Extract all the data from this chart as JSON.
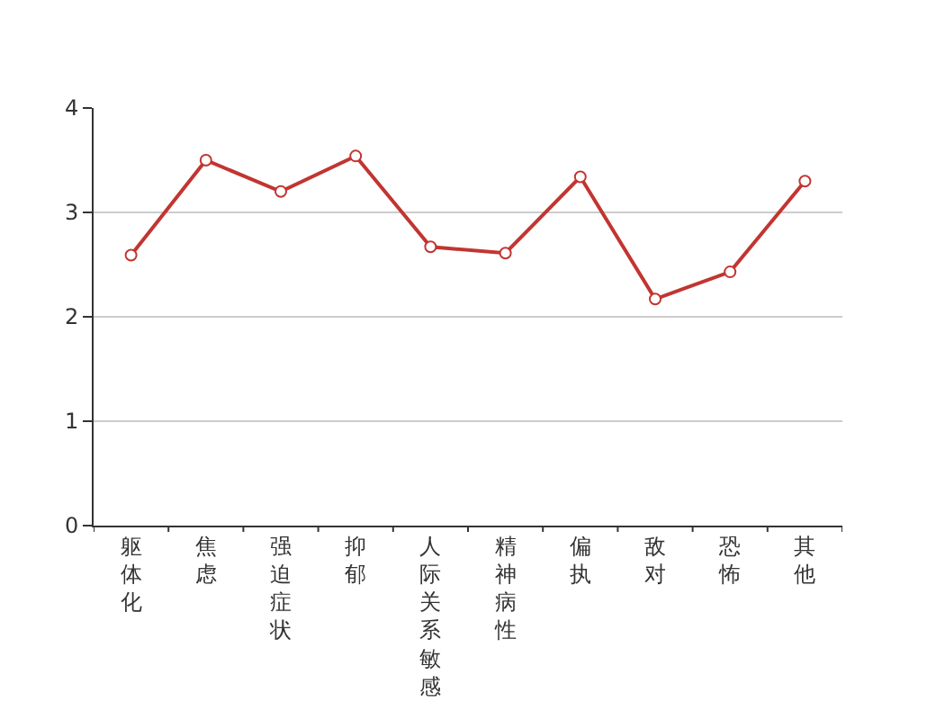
{
  "chart_data": {
    "type": "line",
    "categories": [
      "躯体化",
      "焦虑",
      "强迫症状",
      "抑郁",
      "人际关系敏感",
      "精神病性",
      "偏执",
      "敌对",
      "恐怖",
      "其他"
    ],
    "series": [
      {
        "color": "#c23531",
        "values": [
          2.59,
          3.5,
          3.2,
          3.54,
          2.67,
          2.61,
          3.34,
          2.17,
          2.43,
          3.3
        ]
      }
    ],
    "ylim": [
      0,
      4
    ],
    "yticks": [
      0,
      1,
      2,
      3,
      4
    ],
    "grid": "y",
    "marker": "circle",
    "line_style": "solid"
  }
}
